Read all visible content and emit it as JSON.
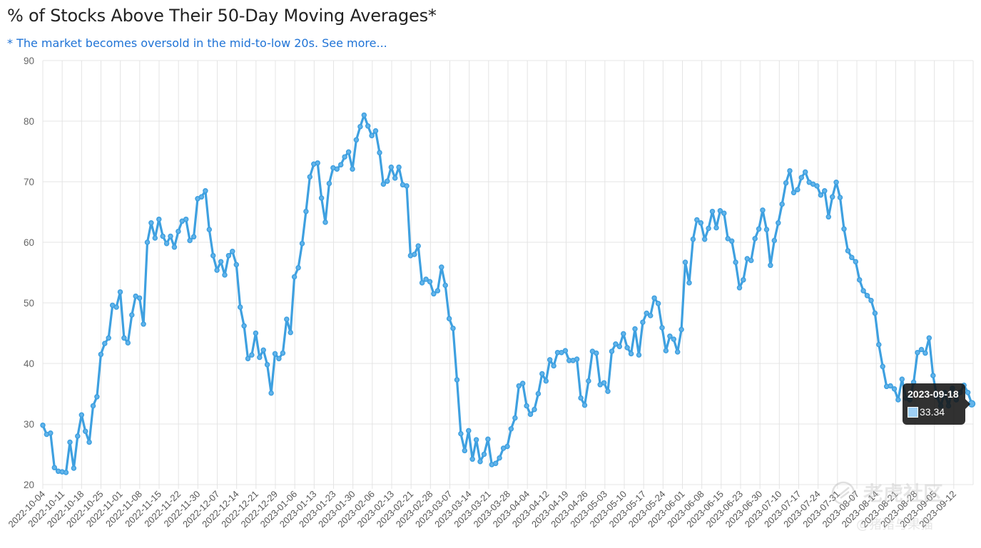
{
  "title": "% of Stocks Above Their 50-Day Moving Averages*",
  "subtitle": "* The market becomes oversold in the mid-to-low 20s. See more...",
  "tooltip": {
    "date": "2023-09-18",
    "value": "33.34",
    "swatch_color": "#9fd0f5"
  },
  "watermark": {
    "text1": "老虎社区",
    "text2": "@猪猪与果猫"
  },
  "colors": {
    "line": "#3ea0e0",
    "point": "#63b4ea",
    "grid": "#e4e4e4",
    "link": "#1f73d6"
  },
  "chart_data": {
    "type": "line",
    "ylim": [
      20,
      90
    ],
    "yticks": [
      20,
      30,
      40,
      50,
      60,
      70,
      80,
      90
    ],
    "grid": true,
    "xlabel": "",
    "ylabel": "",
    "x_tick_labels": [
      "2022-10-04",
      "2022-10-11",
      "2022-10-18",
      "2022-10-25",
      "2022-11-01",
      "2022-11-08",
      "2022-11-15",
      "2022-11-22",
      "2022-11-30",
      "2022-12-07",
      "2022-12-14",
      "2022-12-21",
      "2022-12-29",
      "2023-01-06",
      "2023-01-13",
      "2023-01-23",
      "2023-01-30",
      "2023-02-06",
      "2023-02-13",
      "2023-02-21",
      "2023-02-28",
      "2023-03-07",
      "2023-03-14",
      "2023-03-21",
      "2023-03-28",
      "2023-04-04",
      "2023-04-12",
      "2023-04-19",
      "2023-04-26",
      "2023-05-03",
      "2023-05-10",
      "2023-05-17",
      "2023-05-24",
      "2023-06-01",
      "2023-06-08",
      "2023-06-15",
      "2023-06-23",
      "2023-06-30",
      "2023-07-10",
      "2023-07-17",
      "2023-07-24",
      "2023-07-31",
      "2023-08-07",
      "2023-08-14",
      "2023-08-21",
      "2023-08-28",
      "2023-09-05",
      "2023-09-12"
    ],
    "series": [
      {
        "values": [
          29.8,
          28.3,
          28.5,
          22.8,
          22.2,
          22.1,
          22.0,
          27.0,
          22.7,
          28.0,
          31.5,
          28.8,
          27.0,
          33.0,
          34.5,
          41.5,
          43.3,
          44.2,
          49.6,
          49.3,
          51.8,
          44.2,
          43.4,
          48.0,
          51.1,
          50.8,
          46.5,
          60.0,
          63.2,
          60.7,
          63.8,
          61.0,
          59.8,
          61.0,
          59.2,
          61.8,
          63.5,
          63.8,
          60.3,
          60.9,
          67.2,
          67.5,
          68.5,
          62.1,
          57.8,
          55.4,
          56.8,
          54.6,
          57.8,
          58.5,
          56.3,
          49.3,
          46.2,
          40.8,
          41.4,
          45.0,
          41.0,
          42.2,
          39.8,
          35.1,
          41.6,
          40.8,
          41.7,
          47.3,
          45.1,
          54.3,
          55.8,
          59.8,
          65.1,
          70.8,
          72.9,
          73.1,
          67.3,
          63.3,
          69.7,
          72.3,
          72.1,
          72.8,
          74.1,
          74.9,
          72.1,
          76.9,
          79.1,
          81.0,
          79.2,
          77.6,
          78.4,
          74.8,
          69.6,
          70.1,
          72.4,
          70.6,
          72.4,
          69.5,
          69.3,
          57.8,
          58.0,
          59.4,
          53.3,
          53.9,
          53.5,
          51.5,
          52.0,
          55.9,
          52.9,
          47.4,
          45.8,
          37.3,
          28.4,
          25.6,
          28.9,
          24.2,
          27.4,
          23.8,
          25.0,
          27.5,
          23.3,
          23.5,
          24.4,
          26.0,
          26.3,
          29.2,
          31.0,
          36.3,
          36.7,
          33.0,
          31.6,
          32.4,
          35.0,
          38.3,
          37.1,
          40.6,
          39.6,
          41.8,
          41.8,
          42.1,
          40.5,
          40.5,
          40.7,
          34.3,
          33.1,
          37.1,
          42.0,
          41.7,
          36.5,
          36.8,
          35.4,
          42.0,
          43.2,
          42.8,
          44.9,
          42.6,
          41.6,
          45.7,
          41.4,
          46.8,
          48.3,
          47.9,
          50.8,
          49.9,
          45.9,
          42.1,
          44.5,
          44.0,
          41.9,
          45.6,
          56.7,
          53.3,
          60.5,
          63.7,
          63.2,
          60.5,
          62.3,
          65.1,
          62.4,
          65.2,
          64.8,
          60.6,
          60.2,
          56.7,
          52.5,
          53.8,
          57.3,
          57.0,
          60.6,
          62.2,
          65.3,
          62.1,
          56.2,
          60.3,
          63.2,
          66.3,
          69.8,
          71.8,
          68.2,
          68.7,
          70.7,
          71.6,
          69.9,
          69.6,
          69.3,
          67.8,
          68.5,
          64.2,
          67.5,
          69.9,
          67.4,
          62.2,
          58.6,
          57.5,
          56.8,
          53.8,
          52.0,
          51.2,
          50.4,
          48.3,
          43.1,
          39.5,
          36.2,
          36.3,
          35.8,
          34.0,
          37.4,
          34.3,
          34.0,
          36.9,
          41.8,
          42.3,
          41.7,
          44.2,
          38.0,
          34.5,
          33.0,
          35.2,
          33.0,
          35.9,
          34.0,
          35.2,
          36.4,
          35.2,
          33.34
        ]
      }
    ]
  }
}
